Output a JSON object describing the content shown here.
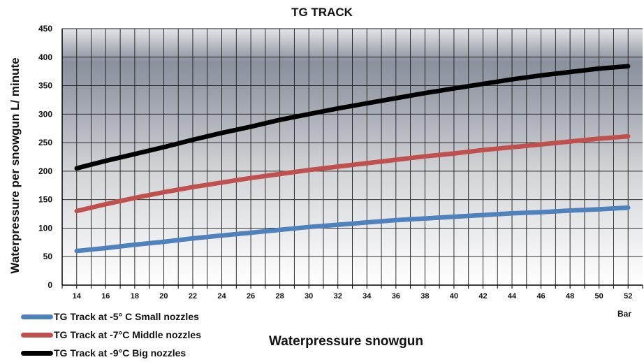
{
  "chart_data": {
    "type": "line",
    "title": "TG TRACK",
    "xlabel": "Waterpressure snowgun",
    "ylabel": "Waterpressure per snowgun L/ minute",
    "x_unit": "Bar",
    "x": [
      14,
      16,
      18,
      20,
      22,
      24,
      26,
      28,
      30,
      32,
      34,
      36,
      38,
      40,
      42,
      44,
      46,
      48,
      50,
      52
    ],
    "xlim": [
      13,
      53
    ],
    "ylim": [
      0,
      450
    ],
    "yticks": [
      0,
      50,
      100,
      150,
      200,
      250,
      300,
      350,
      400,
      450
    ],
    "grid": true,
    "legend_position": "bottom-left",
    "series": [
      {
        "name": "TG Track at -5° C Small nozzles",
        "color": "#4f81bd",
        "values": [
          60,
          65,
          71,
          76,
          82,
          87,
          92,
          97,
          102,
          106,
          110,
          114,
          117,
          120,
          123,
          126,
          128,
          131,
          133,
          136
        ]
      },
      {
        "name": "TG Track at -7°C Middle nozzles",
        "color": "#c0504d",
        "values": [
          130,
          142,
          153,
          163,
          172,
          180,
          188,
          195,
          202,
          208,
          214,
          220,
          226,
          231,
          237,
          242,
          247,
          252,
          257,
          261
        ]
      },
      {
        "name": "TG Track at -9°C Big nozzles",
        "color": "#000000",
        "values": [
          205,
          218,
          230,
          242,
          255,
          267,
          278,
          290,
          300,
          310,
          319,
          328,
          337,
          345,
          353,
          361,
          368,
          374,
          380,
          384
        ]
      }
    ]
  }
}
